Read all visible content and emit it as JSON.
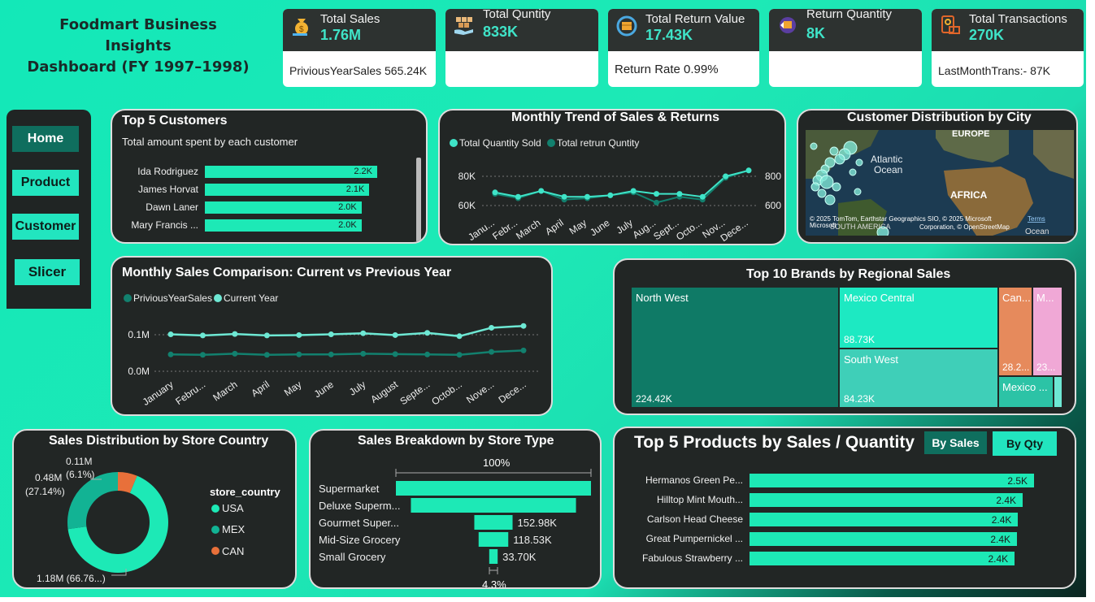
{
  "dashboard": {
    "title_line1": "Foodmart Business Insights",
    "title_line2": "Dashboard (FY 1997–1998)"
  },
  "kpis": [
    {
      "label": "Total Sales",
      "value": "1.76M",
      "sub": "PriviousYearSales 565.24K",
      "icon": "money-bag-icon"
    },
    {
      "label": "Total Quntity",
      "value": "833K",
      "sub": "",
      "icon": "boxes-hand-icon"
    },
    {
      "label": "Total Return Value",
      "value": "17.43K",
      "sub": "Return Rate 0.99%",
      "icon": "return-box-icon"
    },
    {
      "label": "Return Quantity",
      "value": "8K",
      "sub": "",
      "icon": "return-package-icon"
    },
    {
      "label": "Total Transactions",
      "value": "270K",
      "sub": "LastMonthTrans:- 87K",
      "icon": "transaction-icon"
    }
  ],
  "nav": {
    "home": "Home",
    "product": "Product",
    "customer": "Customer",
    "slicer": "Slicer"
  },
  "top_customers": {
    "title": "Top 5 Customers",
    "subtitle": "Total amount spent by each customer",
    "rows": [
      {
        "name": "Ida Rodriguez",
        "value": "2.2K",
        "amount": 2.2
      },
      {
        "name": "James Horvat",
        "value": "2.1K",
        "amount": 2.1
      },
      {
        "name": "Dawn Laner",
        "value": "2.0K",
        "amount": 2.0
      },
      {
        "name": "Mary Francis ...",
        "value": "2.0K",
        "amount": 2.0
      }
    ]
  },
  "monthly_trend": {
    "title": "Monthly Trend of Sales & Returns",
    "legend": [
      "Total Quantity Sold",
      "Total retrun Quntity"
    ],
    "left_ticks": [
      "80K",
      "60K"
    ],
    "right_ticks": [
      "800",
      "600"
    ],
    "months": [
      "Janu...",
      "Febr...",
      "March",
      "April",
      "May",
      "June",
      "July",
      "Aug...",
      "Sept...",
      "Octo...",
      "Nov...",
      "Dece..."
    ],
    "sold": [
      69,
      66,
      70,
      66,
      66,
      67,
      70,
      68,
      68,
      66,
      80,
      84
    ],
    "returns": [
      680,
      650,
      700,
      640,
      650,
      670,
      690,
      620,
      660,
      640,
      790,
      840
    ]
  },
  "city_map": {
    "title": "Customer Distribution by City",
    "labels": {
      "europe": "EUROPE",
      "atlantic": "Atlantic",
      "ocean": "Ocean",
      "africa": "AFRICA",
      "south_america": "SOUTH AMERICA",
      "ocean2": "Ocean"
    },
    "copyright_line1": "© 2025 TomTom, Earthstar Geographics SIO, © 2025 Microsoft",
    "copyright_terms": "Terms",
    "copyright_line2": "Corporation, © OpenStreetMap",
    "brand": "Microsoft"
  },
  "sales_comparison": {
    "title": "Monthly Sales Comparison: Current vs Previous Year",
    "legend": [
      "PriviousYearSales",
      "Current Year"
    ],
    "ticks": [
      "0.1M",
      "0.0M"
    ],
    "months": [
      "January",
      "Febru...",
      "March",
      "April",
      "May",
      "June",
      "July",
      "August",
      "Septe...",
      "Octob...",
      "Nove...",
      "Dece..."
    ],
    "previous": [
      0.046,
      0.045,
      0.048,
      0.045,
      0.046,
      0.046,
      0.048,
      0.047,
      0.046,
      0.045,
      0.053,
      0.057
    ],
    "current": [
      0.101,
      0.098,
      0.102,
      0.098,
      0.099,
      0.101,
      0.104,
      0.099,
      0.105,
      0.096,
      0.119,
      0.124
    ]
  },
  "brands": {
    "title": "Top 10 Brands by Regional Sales",
    "tiles": {
      "north_west": {
        "label": "North West",
        "value": "224.42K"
      },
      "mexico_central": {
        "label": "Mexico Central",
        "value": "88.73K"
      },
      "south_west": {
        "label": "South West",
        "value": "84.23K"
      },
      "can": {
        "label": "Can...",
        "value": "28.2..."
      },
      "m": {
        "label": "M...",
        "value": "23..."
      },
      "mexico": {
        "label": "Mexico ..."
      }
    }
  },
  "country": {
    "title": "Sales Distribution by Store Country",
    "legend_title": "store_country",
    "legend": [
      {
        "name": "USA",
        "color": "#1de9b6"
      },
      {
        "name": "MEX",
        "color": "#12b394"
      },
      {
        "name": "CAN",
        "color": "#e8703a"
      }
    ],
    "label_can_1": "0.11M",
    "label_can_2": "(6.1%)",
    "label_mex_1": "0.48M",
    "label_mex_2": "(27.14%)",
    "label_usa": "1.18M (66.76...)",
    "chart_data": {
      "type": "pie",
      "categories": [
        "USA",
        "MEX",
        "CAN"
      ],
      "values": [
        1.18,
        0.48,
        0.11
      ]
    }
  },
  "store_type": {
    "title": "Sales Breakdown by Store Type",
    "top_pct": "100%",
    "bottom_pct": "4.3%",
    "rows": [
      {
        "name": "Supermarket",
        "value": "",
        "amount": 780
      },
      {
        "name": "Deluxe Superm...",
        "value": "",
        "amount": 660
      },
      {
        "name": "Gourmet Super...",
        "value": "152.98K",
        "amount": 152.98
      },
      {
        "name": "Mid-Size Grocery",
        "value": "118.53K",
        "amount": 118.53
      },
      {
        "name": "Small Grocery",
        "value": "33.70K",
        "amount": 33.7
      }
    ]
  },
  "top_products": {
    "title": "Top 5 Products by Sales / Quantity",
    "btn_sales": "By Sales",
    "btn_qty": "By Qty",
    "rows": [
      {
        "name": "Hermanos Green Pe...",
        "value": "2.5K",
        "amount": 2.5
      },
      {
        "name": "Hilltop Mint Mouth...",
        "value": "2.4K",
        "amount": 2.4
      },
      {
        "name": "Carlson Head Cheese",
        "value": "2.4K",
        "amount": 2.36
      },
      {
        "name": "Great Pumpernickel ...",
        "value": "2.4K",
        "amount": 2.35
      },
      {
        "name": "Fabulous Strawberry ...",
        "value": "2.4K",
        "amount": 2.33
      }
    ]
  }
}
